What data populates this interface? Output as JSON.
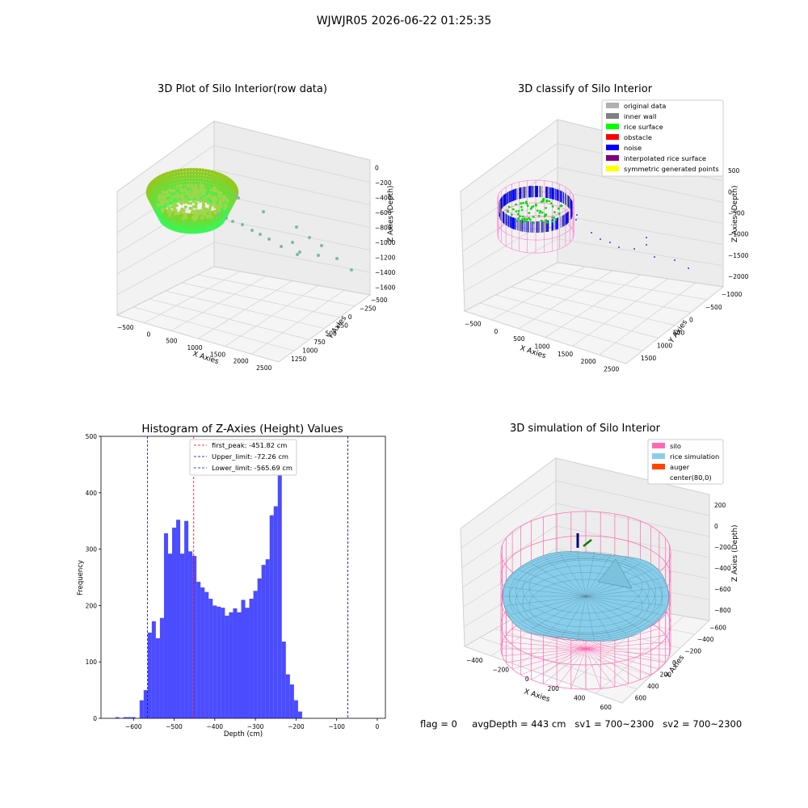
{
  "suptitle": "WJWJR05 2026-06-22 01:25:35",
  "footer": {
    "flag": "flag = 0",
    "avg": "avgDepth = 443 cm",
    "sv1": "sv1 = 700~2300",
    "sv2": "sv2 = 700~2300"
  },
  "plots": {
    "raw": {
      "title": "3D Plot of Silo Interior(row data)",
      "xlabel": "X Axies",
      "ylabel": "Y Axies",
      "zlabel": "Z Axies (Depth)",
      "xticks": [
        "−500",
        "0",
        "500",
        "1000",
        "1500",
        "2000",
        "2500"
      ],
      "yticks": [
        "−500",
        "−250",
        "0",
        "250",
        "500",
        "750",
        "1000",
        "1250"
      ],
      "zticks": [
        "0",
        "−200",
        "−400",
        "−600",
        "−800",
        "−1000",
        "−1200",
        "−1400",
        "−1600"
      ]
    },
    "classify": {
      "title": "3D classify of Silo Interior",
      "xlabel": "X Axies",
      "ylabel": "Y Axies",
      "zlabel": "Z Axies (Depth)",
      "xticks": [
        "−500",
        "0",
        "500",
        "1000",
        "1500",
        "2000",
        "2500"
      ],
      "yticks": [
        "−1000",
        "−500",
        "0",
        "500",
        "1000",
        "1500"
      ],
      "zticks": [
        "500",
        "0",
        "−500",
        "−1000",
        "−1500",
        "−2000"
      ],
      "legend": [
        {
          "label": "original data",
          "color": "#b0b0b0"
        },
        {
          "label": "inner wall",
          "color": "#808080"
        },
        {
          "label": "rice surface",
          "color": "#00ff00"
        },
        {
          "label": "obstacle",
          "color": "#ff0000"
        },
        {
          "label": "noise",
          "color": "#0000ff"
        },
        {
          "label": "interpolated rice surface",
          "color": "#800080"
        },
        {
          "label": "symmetric generated points",
          "color": "#ffff00"
        }
      ]
    },
    "simulation": {
      "title": "3D simulation of Silo Interior",
      "xlabel": "X Axies",
      "ylabel": "Y Axies",
      "zlabel": "Z Axies (Depth)",
      "xticks": [
        "−400",
        "−200",
        "0",
        "200",
        "400",
        "600"
      ],
      "yticks": [
        "−600",
        "−400",
        "−200",
        "0",
        "200",
        "400",
        "600"
      ],
      "zticks": [
        "200",
        "0",
        "−200",
        "−400",
        "−600",
        "−800"
      ],
      "legend": [
        {
          "label": "silo",
          "color": "#ff69b4"
        },
        {
          "label": "rice simulation",
          "color": "#87ceeb"
        },
        {
          "label": "auger",
          "color": "#ff4500"
        },
        {
          "label": "center(80,0)",
          "color": ""
        }
      ]
    }
  },
  "chart_data": {
    "type": "bar",
    "title": "Histogram of Z-Axies (Height) Values",
    "xlabel": "Depth (cm)",
    "ylabel": "Frequency",
    "xlim": [
      -680,
      20
    ],
    "ylim": [
      0,
      500
    ],
    "xticks": [
      -600,
      -500,
      -400,
      -300,
      -200,
      -100,
      0
    ],
    "yticks": [
      0,
      100,
      200,
      300,
      400,
      500
    ],
    "bin_start": -645,
    "bin_width": 10,
    "counts": [
      2,
      0,
      2,
      2,
      2,
      0,
      32,
      50,
      152,
      172,
      142,
      178,
      328,
      292,
      338,
      352,
      292,
      350,
      296,
      288,
      242,
      232,
      224,
      212,
      200,
      198,
      196,
      182,
      188,
      195,
      188,
      210,
      196,
      212,
      226,
      248,
      272,
      282,
      360,
      376,
      476,
      136,
      78,
      60,
      32,
      12
    ],
    "color": "#0000ff",
    "vlines": [
      {
        "label": "first_peak: -451.82 cm",
        "x": -451.82,
        "color": "#ff0000"
      },
      {
        "label": "Upper_limit: -72.26 cm",
        "x": -72.26,
        "color": "#00008b"
      },
      {
        "label": "Lower_limit: -565.69 cm",
        "x": -565.69,
        "color": "#0000ff"
      }
    ]
  }
}
